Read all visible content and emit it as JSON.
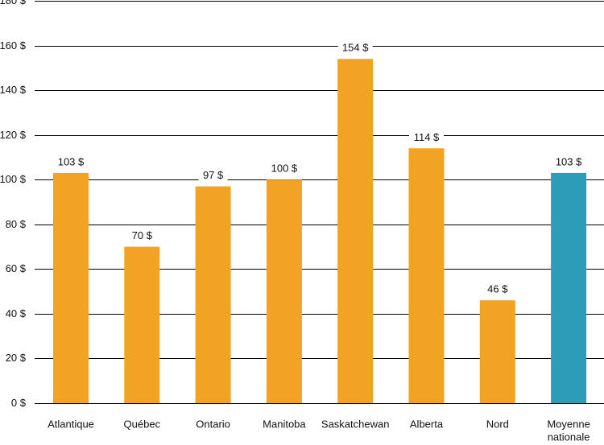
{
  "chart_data": {
    "type": "bar",
    "title": "",
    "xlabel": "",
    "ylabel": "",
    "ylim": [
      0,
      180
    ],
    "y_tick_step": 20,
    "y_tick_suffix": " $",
    "grid": true,
    "categories": [
      "Atlantique",
      "Québec",
      "Ontario",
      "Manitoba",
      "Saskatchewan",
      "Alberta",
      "Nord",
      "Moyenne nationale"
    ],
    "category_lines": [
      [
        "Atlantique"
      ],
      [
        "Québec"
      ],
      [
        "Ontario"
      ],
      [
        "Manitoba"
      ],
      [
        "Saskatchewan"
      ],
      [
        "Alberta"
      ],
      [
        "Nord"
      ],
      [
        "Moyenne",
        "nationale"
      ]
    ],
    "values": [
      103,
      70,
      97,
      100,
      154,
      114,
      46,
      103
    ],
    "value_labels": [
      "103 $",
      "70 $",
      "97 $",
      "100 $",
      "154 $",
      "114 $",
      "46 $",
      "103 $"
    ],
    "colors": {
      "bar": "#F2A323",
      "highlight": "#2B9DB9",
      "grid": "#000000",
      "text": "#111111"
    },
    "highlight_index": 7
  }
}
